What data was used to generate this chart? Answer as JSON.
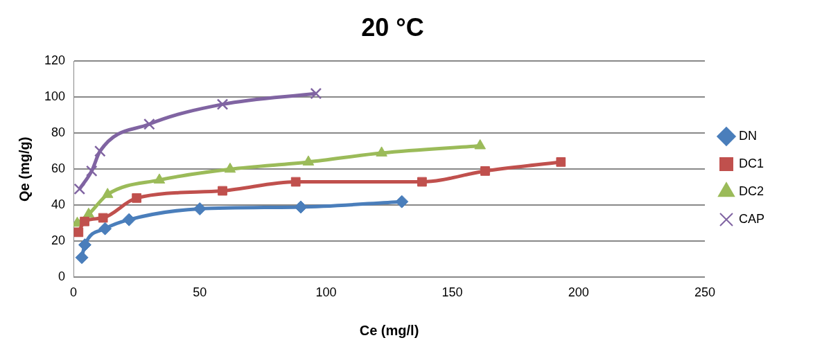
{
  "chart_data": {
    "type": "line",
    "title": "20 °C",
    "xlabel": "Ce (mg/l)",
    "ylabel": "Qe (mg/g)",
    "xlim": [
      0,
      250
    ],
    "xticks": [
      0,
      50,
      100,
      150,
      200,
      250
    ],
    "ylim": [
      0,
      120
    ],
    "yticks": [
      0,
      20,
      40,
      60,
      80,
      100,
      120
    ],
    "grid": "y",
    "legend": "right",
    "series": [
      {
        "name": "DN",
        "color": "#4a7ebb",
        "marker": "diamond",
        "x": [
          3.3,
          4.5,
          12.5,
          22,
          50,
          90,
          130
        ],
        "values": [
          11,
          18,
          27,
          32,
          38,
          39,
          42
        ]
      },
      {
        "name": "DC1",
        "color": "#c0504d",
        "marker": "square",
        "x": [
          2,
          4.4,
          11.7,
          25,
          59,
          88,
          138,
          163,
          193
        ],
        "values": [
          25,
          31,
          33,
          44,
          48,
          53,
          53,
          59,
          64
        ]
      },
      {
        "name": "DC2",
        "color": "#9bbb59",
        "marker": "triangle",
        "x": [
          1.5,
          6,
          13.5,
          34,
          62,
          93,
          122,
          161
        ],
        "values": [
          30,
          35,
          46,
          54,
          60,
          64,
          69,
          73
        ]
      },
      {
        "name": "CAP",
        "color": "#8064a2",
        "marker": "cross",
        "x": [
          2.4,
          7.2,
          10.5,
          30,
          59,
          96
        ],
        "values": [
          49,
          59,
          70,
          85,
          96,
          102
        ]
      }
    ]
  }
}
